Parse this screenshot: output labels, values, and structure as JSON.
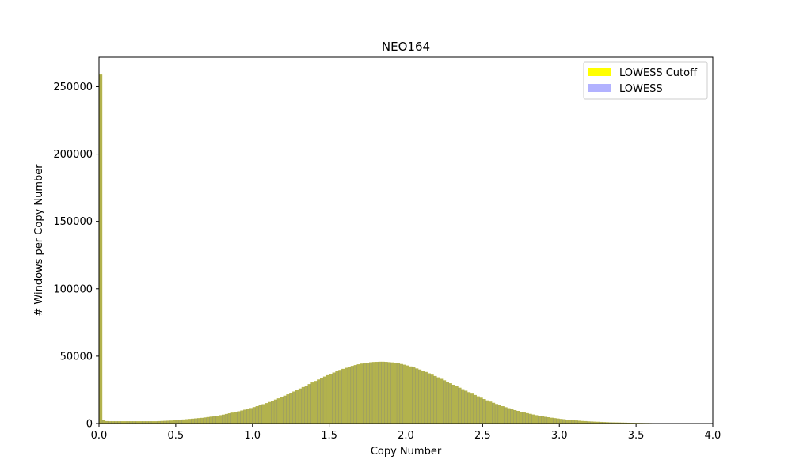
{
  "chart_data": {
    "type": "bar",
    "title": "NEO164",
    "xlabel": "Copy Number",
    "ylabel": "# Windows per Copy Number",
    "xlim": [
      0,
      4.0
    ],
    "ylim": [
      0,
      272000
    ],
    "x_ticks": [
      "0.0",
      "0.5",
      "1.0",
      "1.5",
      "2.0",
      "2.5",
      "3.0",
      "3.5",
      "4.0"
    ],
    "y_ticks": [
      "0",
      "50000",
      "100000",
      "150000",
      "200000",
      "250000"
    ],
    "grid": false,
    "legend_position": "top-right",
    "bin_width": 0.02,
    "bin_start": 0.0,
    "series": [
      {
        "name": "LOWESS Cutoff",
        "color": "#ffff00",
        "alpha": 1.0,
        "values": [
          259000,
          2500,
          1800,
          1700,
          1700,
          1700,
          1700,
          1700,
          1700,
          1700,
          1700,
          1700,
          1700,
          1700,
          1700,
          1700,
          1700,
          1700,
          1700,
          1800,
          1900,
          2000,
          2100,
          2200,
          2400,
          2600,
          2800,
          3000,
          3200,
          3400,
          3600,
          3800,
          4000,
          4200,
          4500,
          4800,
          5100,
          5400,
          5800,
          6200,
          6600,
          7100,
          7600,
          8100,
          8600,
          9100,
          9700,
          10300,
          10900,
          11500,
          12200,
          12900,
          13600,
          14400,
          15200,
          16000,
          16900,
          17800,
          18700,
          19700,
          20700,
          21700,
          22800,
          23800,
          24900,
          26000,
          27100,
          28200,
          29300,
          30500,
          31600,
          32700,
          33800,
          34900,
          35900,
          36900,
          37900,
          38900,
          39800,
          40600,
          41400,
          42100,
          42800,
          43400,
          44000,
          44500,
          44900,
          45200,
          45500,
          45700,
          45800,
          45900,
          45900,
          45800,
          45600,
          45400,
          45100,
          44700,
          44200,
          43700,
          43100,
          42400,
          41700,
          40900,
          40100,
          39200,
          38300,
          37300,
          36300,
          35300,
          34300,
          33200,
          32100,
          31000,
          29900,
          28800,
          27700,
          26600,
          25500,
          24400,
          23300,
          22200,
          21200,
          20200,
          19200,
          18200,
          17200,
          16300,
          15400,
          14500,
          13700,
          12900,
          12100,
          11400,
          10700,
          10000,
          9400,
          8800,
          8200,
          7700,
          7200,
          6700,
          6200,
          5800,
          5400,
          5000,
          4700,
          4300,
          4000,
          3700,
          3400,
          3200,
          2900,
          2700,
          2500,
          2300,
          2100,
          1900,
          1800,
          1600,
          1500,
          1400,
          1300,
          1200,
          1100,
          1000,
          900,
          850,
          800,
          750,
          700,
          650,
          600,
          550,
          500,
          460,
          420,
          390,
          360,
          330,
          300,
          280,
          260,
          240,
          220,
          200,
          190,
          180,
          170,
          160,
          150,
          140,
          130,
          120,
          110,
          100,
          95,
          90,
          85,
          80
        ]
      },
      {
        "name": "LOWESS",
        "color": "#0000ff",
        "alpha": 0.3,
        "values": [
          259000,
          2500,
          1800,
          1700,
          1700,
          1700,
          1700,
          1700,
          1700,
          1700,
          1700,
          1700,
          1700,
          1700,
          1700,
          1700,
          1700,
          1700,
          1700,
          1800,
          1900,
          2000,
          2100,
          2200,
          2400,
          2600,
          2800,
          3000,
          3200,
          3400,
          3600,
          3800,
          4000,
          4200,
          4500,
          4800,
          5100,
          5400,
          5800,
          6200,
          6600,
          7100,
          7600,
          8100,
          8600,
          9100,
          9700,
          10300,
          10900,
          11500,
          12200,
          12900,
          13600,
          14400,
          15200,
          16000,
          16900,
          17800,
          18700,
          19700,
          20700,
          21700,
          22800,
          23800,
          24900,
          26000,
          27100,
          28200,
          29300,
          30500,
          31600,
          32700,
          33800,
          34900,
          35900,
          36900,
          37900,
          38900,
          39800,
          40600,
          41400,
          42100,
          42800,
          43400,
          44000,
          44500,
          44900,
          45200,
          45500,
          45700,
          45800,
          45900,
          45900,
          45800,
          45600,
          45400,
          45100,
          44700,
          44200,
          43700,
          43100,
          42400,
          41700,
          40900,
          40100,
          39200,
          38300,
          37300,
          36300,
          35300,
          34300,
          33200,
          32100,
          31000,
          29900,
          28800,
          27700,
          26600,
          25500,
          24400,
          23300,
          22200,
          21200,
          20200,
          19200,
          18200,
          17200,
          16300,
          15400,
          14500,
          13700,
          12900,
          12100,
          11400,
          10700,
          10000,
          9400,
          8800,
          8200,
          7700,
          7200,
          6700,
          6200,
          5800,
          5400,
          5000,
          4700,
          4300,
          4000,
          3700,
          3400,
          3200,
          2900,
          2700,
          2500,
          2300,
          2100,
          1900,
          1800,
          1600,
          1500,
          1400,
          1300,
          1200,
          1100,
          1000,
          900,
          850,
          800,
          750,
          700,
          650,
          600,
          550,
          500,
          460,
          420,
          390,
          360,
          330,
          300,
          280,
          260,
          240,
          220,
          200,
          190,
          180,
          170,
          160,
          150,
          140,
          130,
          120,
          110,
          100,
          95,
          90,
          85,
          80
        ]
      }
    ]
  }
}
